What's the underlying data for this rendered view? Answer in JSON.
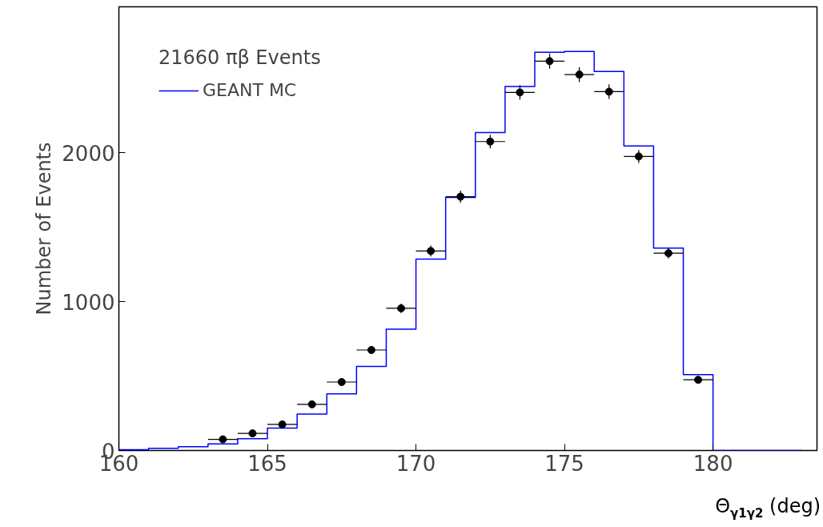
{
  "chart_data": {
    "type": "histogram",
    "xlabel": "Θ$_{γ1γ2}$ (deg)",
    "ylabel": "Number of Events",
    "legend_title": "21660 πβ Events",
    "legend": "top left",
    "grid": false,
    "bins": [
      160,
      161,
      162,
      163,
      164,
      165,
      166,
      167,
      168,
      169,
      170,
      171,
      172,
      173,
      174,
      175,
      176,
      177,
      178,
      179,
      180,
      181,
      182,
      183
    ],
    "xlim": [
      160,
      183.5
    ],
    "xticks": [
      160,
      165,
      170,
      175,
      180
    ],
    "ylim": [
      0,
      2980
    ],
    "yticks": [
      0,
      1000,
      2000
    ],
    "series": [
      {
        "type": "histogram",
        "name": "GEANT MC",
        "color": "#0000ff",
        "values": [
          5,
          15,
          25,
          45,
          80,
          150,
          245,
          380,
          565,
          815,
          1285,
          1700,
          2135,
          2445,
          2675,
          2680,
          2545,
          2045,
          1360,
          510,
          0,
          0,
          0
        ]
      },
      {
        "type": "scatter",
        "color": "#000000",
        "marker": "circle",
        "x": [
          163.5,
          164.5,
          165.5,
          166.5,
          167.5,
          168.5,
          169.5,
          170.5,
          171.5,
          172.5,
          173.5,
          174.5,
          175.5,
          176.5,
          177.5,
          178.5,
          179.5
        ],
        "values": [
          75,
          115,
          175,
          310,
          460,
          675,
          955,
          1340,
          1705,
          2075,
          2405,
          2615,
          2525,
          2410,
          1975,
          1325,
          475
        ],
        "errors": [
          9,
          11,
          13,
          18,
          21,
          26,
          31,
          37,
          41,
          46,
          49,
          51,
          50,
          49,
          44,
          36,
          22
        ],
        "xerrors": [
          0.5,
          0.5,
          0.5,
          0.5,
          0.5,
          0.5,
          0.5,
          0.5,
          0.5,
          0.5,
          0.5,
          0.5,
          0.5,
          0.5,
          0.5,
          0.5,
          0.5
        ]
      }
    ]
  }
}
